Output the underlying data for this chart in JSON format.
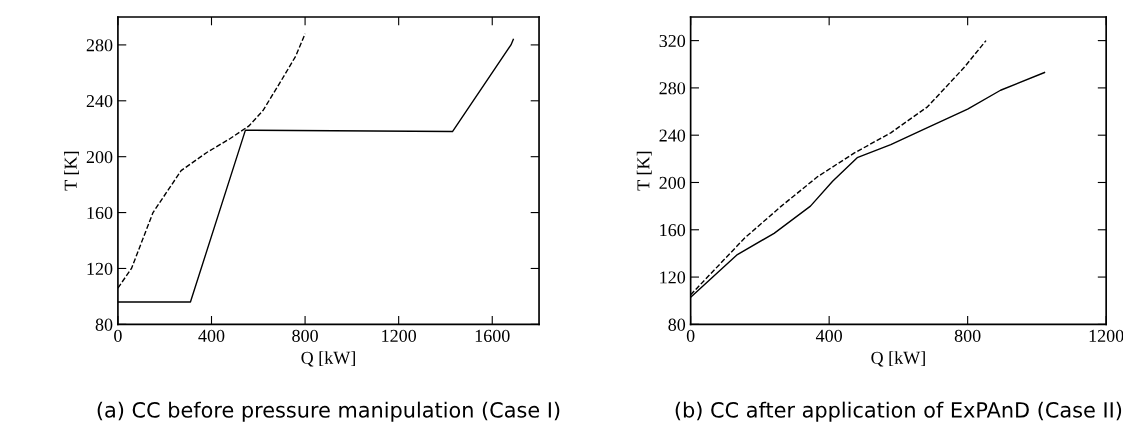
{
  "chart_data": [
    {
      "type": "line",
      "title": "(a) CC before pressure manipulation (Case I)",
      "xlabel": "Q [kW]",
      "ylabel": "T [K]",
      "xlim": [
        0,
        1800
      ],
      "ylim": [
        80,
        300
      ],
      "xticks": [
        0,
        400,
        800,
        1200,
        1600
      ],
      "yticks": [
        80,
        120,
        160,
        200,
        240,
        280
      ],
      "grid": false,
      "legend": false,
      "series": [
        {
          "color": "#000000",
          "line_style": "solid",
          "x": [
            0,
            310,
            545,
            1430,
            1680,
            1690
          ],
          "values": [
            96,
            96,
            219,
            218,
            280,
            284
          ]
        },
        {
          "color": "#000000",
          "line_style": "dashed",
          "x": [
            0,
            58,
            150,
            270,
            380,
            480,
            560,
            620,
            700,
            760,
            800
          ],
          "values": [
            106,
            120,
            160,
            190,
            203,
            213,
            222,
            233,
            255,
            272,
            288
          ]
        }
      ]
    },
    {
      "type": "line",
      "title": "(b) CC after application of ExPAnD (Case II)",
      "xlabel": "Q [kW]",
      "ylabel": "T [K]",
      "xlim": [
        0,
        1200
      ],
      "ylim": [
        80,
        340
      ],
      "xticks": [
        0,
        400,
        800,
        1200
      ],
      "yticks": [
        80,
        120,
        160,
        200,
        240,
        280,
        320
      ],
      "grid": false,
      "legend": false,
      "series": [
        {
          "color": "#000000",
          "line_style": "solid",
          "x": [
            0,
            135,
            241,
            346,
            410,
            481,
            578,
            673,
            800,
            895,
            1022
          ],
          "values": [
            103,
            139,
            157,
            180,
            201,
            221,
            232,
            245,
            262,
            278,
            293
          ]
        },
        {
          "color": "#000000",
          "line_style": "dashed",
          "x": [
            0,
            156,
            262,
            367,
            473,
            578,
            684,
            789,
            853
          ],
          "values": [
            105,
            153,
            180,
            205,
            225,
            242,
            264,
            297,
            320
          ]
        }
      ]
    }
  ]
}
